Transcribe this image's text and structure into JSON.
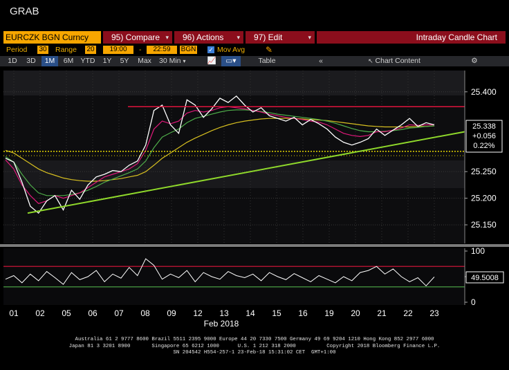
{
  "window": {
    "title": "GRAB"
  },
  "command_bar": {
    "security": "EURCZK BGN Curncy",
    "compare": "95) Compare",
    "actions": "96) Actions",
    "edit": "97) Edit",
    "chart_type": "Intraday Candle Chart"
  },
  "params": {
    "period_label": "Period",
    "period_value": "30",
    "range_label": "Range",
    "range_value": "20",
    "time_start": "19:00",
    "time_sep": "-",
    "time_end": "22:59",
    "source": "BGN",
    "mov_avg_label": "Mov Avg",
    "mov_avg_checked": true
  },
  "toolbar": {
    "ranges": [
      "1D",
      "3D",
      "1M",
      "6M",
      "YTD",
      "1Y",
      "5Y",
      "Max"
    ],
    "selected_range": "1M",
    "interval": "30 Min",
    "table_label": "Table",
    "chart_content_label": "Chart Content"
  },
  "colors": {
    "accent_orange": "#f7a600",
    "menu_red": "#8b0e1c",
    "price_line": "#ffffff",
    "ma_magenta": "#e0197a",
    "ma_green": "#4fae4a",
    "ma_yellow": "#d8c020",
    "trendline": "#8fd82b",
    "resistance": "#e0143c",
    "dotted_level": "#e6d800"
  },
  "chart_data": [
    {
      "type": "line",
      "title": "",
      "y_ticks": [
        25.15,
        25.2,
        25.25,
        25.4
      ],
      "ylim": [
        25.115,
        25.44
      ],
      "last_price": "25.338",
      "change": "+0.056",
      "change_pct": "0.22%",
      "x_labels": [
        "01",
        "02",
        "05",
        "06",
        "07",
        "08",
        "09",
        "12",
        "13",
        "14",
        "15",
        "16",
        "19",
        "20",
        "21",
        "22",
        "23"
      ],
      "month_label": "Feb 2018",
      "series": [
        {
          "values": [
            25.275,
            25.268,
            25.23,
            25.185,
            25.172,
            25.195,
            25.205,
            25.178,
            25.215,
            25.198,
            25.225,
            25.24,
            25.245,
            25.252,
            25.25,
            25.262,
            25.27,
            25.3,
            25.365,
            25.375,
            25.338,
            25.322,
            25.385,
            25.375,
            25.352,
            25.368,
            25.388,
            25.38,
            25.392,
            25.375,
            25.362,
            25.37,
            25.355,
            25.35,
            25.345,
            25.352,
            25.338,
            25.348,
            25.34,
            25.33,
            25.315,
            25.305,
            25.3,
            25.305,
            25.312,
            25.33,
            25.318,
            25.328,
            25.338,
            25.35,
            25.335,
            25.342,
            25.338
          ]
        },
        {
          "name": "",
          "values": [
            25.272,
            25.255,
            25.225,
            25.205,
            25.19,
            25.195,
            25.205,
            25.2,
            25.205,
            25.21,
            25.22,
            25.23,
            25.24,
            25.245,
            25.25,
            25.255,
            25.265,
            25.29,
            25.33,
            25.345,
            25.34,
            25.345,
            25.36,
            25.365,
            25.362,
            25.365,
            25.37,
            25.372,
            25.37,
            25.368,
            25.365,
            25.362,
            25.358,
            25.355,
            25.352,
            25.35,
            25.348,
            25.345,
            25.343,
            25.338,
            25.33,
            25.322,
            25.318,
            25.316,
            25.318,
            25.325,
            25.325,
            25.328,
            25.332,
            25.338,
            25.337,
            25.338,
            25.338
          ]
        },
        {
          "name": "",
          "values": [
            25.278,
            25.268,
            25.245,
            25.225,
            25.21,
            25.205,
            25.205,
            25.205,
            25.207,
            25.21,
            25.215,
            25.222,
            25.23,
            25.236,
            25.242,
            25.248,
            25.255,
            25.27,
            25.295,
            25.315,
            25.323,
            25.33,
            25.342,
            25.35,
            25.354,
            25.358,
            25.362,
            25.365,
            25.366,
            25.366,
            25.365,
            25.363,
            25.361,
            25.358,
            25.356,
            25.354,
            25.352,
            25.35,
            25.348,
            25.345,
            25.341,
            25.336,
            25.331,
            25.327,
            25.325,
            25.325,
            25.326,
            25.327,
            25.329,
            25.332,
            25.333,
            25.335,
            25.336
          ]
        },
        {
          "name": "",
          "values": [
            25.29,
            25.285,
            25.275,
            25.265,
            25.255,
            25.248,
            25.243,
            25.238,
            25.235,
            25.233,
            25.232,
            25.232,
            25.233,
            25.235,
            25.237,
            25.24,
            25.243,
            25.25,
            25.262,
            25.275,
            25.285,
            25.295,
            25.305,
            25.313,
            25.32,
            25.327,
            25.333,
            25.338,
            25.342,
            25.345,
            25.347,
            25.349,
            25.35,
            25.35,
            25.35,
            25.35,
            25.349,
            25.348,
            25.347,
            25.346,
            25.344,
            25.342,
            25.34,
            25.338,
            25.336,
            25.335,
            25.334,
            25.334,
            25.334,
            25.334,
            25.335,
            25.335,
            25.336
          ]
        }
      ]
    },
    {
      "type": "line",
      "title": "",
      "y_ticks": [
        0,
        50,
        100
      ],
      "ylim": [
        0,
        100
      ],
      "last_value": "49.5008",
      "levels": [
        70,
        30
      ],
      "series": [
        {
          "values": [
            45,
            52,
            38,
            55,
            42,
            60,
            48,
            35,
            58,
            44,
            50,
            62,
            40,
            55,
            47,
            68,
            52,
            85,
            72,
            45,
            55,
            48,
            62,
            40,
            58,
            50,
            45,
            60,
            52,
            48,
            55,
            42,
            58,
            50,
            44,
            56,
            48,
            40,
            52,
            45,
            38,
            50,
            42,
            58,
            62,
            70,
            55,
            65,
            50,
            40,
            48,
            32,
            49.5
          ]
        }
      ]
    }
  ],
  "footer": {
    "line1": "Australia 61 2 9777 8600 Brazil 5511 2395 9000 Europe 44 20 7330 7500 Germany 49 69 9204 1210 Hong Kong 852 2977 6000",
    "line2": "Japan 81 3 3201 8900       Singapore 65 6212 1000      U.S. 1 212 318 2000          Copyright 2018 Bloomberg Finance L.P.",
    "line3": "SN 204542 H554-257-1 23-Feb-18 15:31:02 CET  GMT+1:00"
  }
}
